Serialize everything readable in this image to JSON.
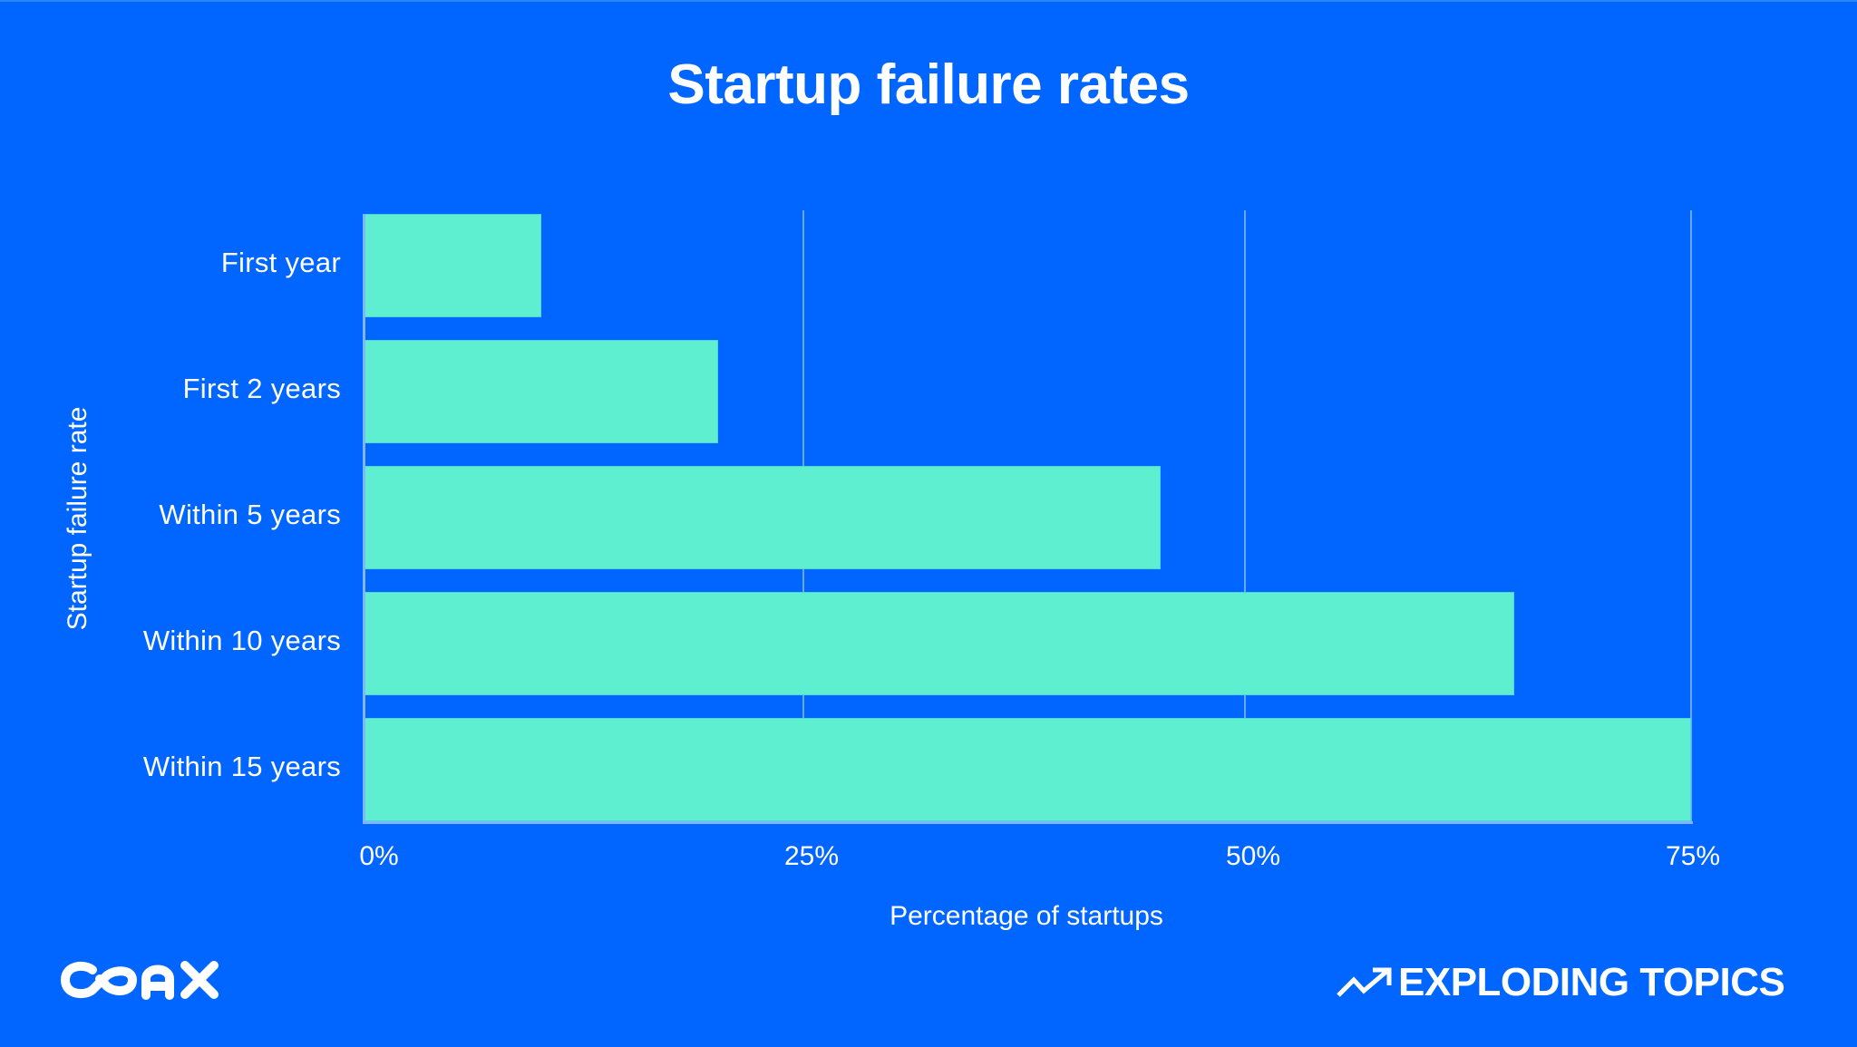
{
  "title": "Startup failure rates",
  "colors": {
    "background": "#0066ff",
    "bar": "#5eefd0",
    "gridline": "#6aa8ff",
    "text": "#ffffff"
  },
  "axes": {
    "ylabel": "Startup failure rate",
    "xlabel": "Percentage of startups",
    "ticks": [
      "0%",
      "25%",
      "50%",
      "75%"
    ]
  },
  "categories": [
    "First year",
    "First 2 years",
    "Within 5 years",
    "Within 10 years",
    "Within 15 years"
  ],
  "branding": {
    "left_logo": "COAX",
    "right_logo": "EXPLODING TOPICS",
    "right_logo_icon": "trending-up-arrow-icon"
  },
  "chart_data": {
    "type": "bar",
    "orientation": "horizontal",
    "title": "Startup failure rates",
    "categories": [
      "First year",
      "First 2 years",
      "Within 5 years",
      "Within 10 years",
      "Within 15 years"
    ],
    "values": [
      10,
      20,
      45,
      65,
      75
    ],
    "unit": "%",
    "xlabel": "Percentage of startups",
    "ylabel": "Startup failure rate",
    "xlim": [
      0,
      75
    ],
    "xticks": [
      0,
      25,
      50,
      75
    ],
    "xtick_labels": [
      "0%",
      "25%",
      "50%",
      "75%"
    ],
    "grid": "vertical",
    "legend": "none",
    "bar_color": "#5eefd0"
  }
}
